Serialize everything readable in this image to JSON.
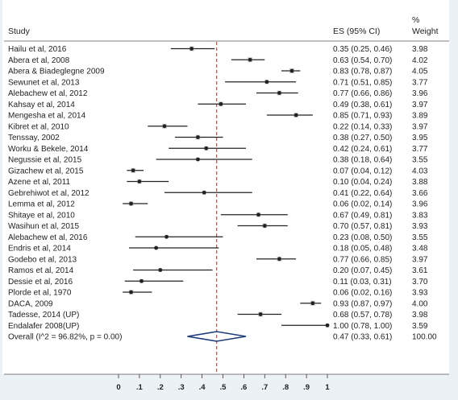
{
  "chart_data": {
    "type": "forest",
    "headers": {
      "study": "Study",
      "es": "ES (95% CI)",
      "weight_line1": "%",
      "weight_line2": "Weight"
    },
    "xticks": [
      "0",
      ".1",
      ".2",
      ".3",
      ".4",
      ".5",
      ".6",
      ".7",
      ".8",
      ".9",
      "1"
    ],
    "xlim": [
      0,
      1
    ],
    "reference_line": 0.47,
    "studies": [
      {
        "name": "Hailu et al, 2016",
        "es": 0.35,
        "lo": 0.25,
        "hi": 0.46,
        "ci_text": "0.35 (0.25, 0.46)",
        "weight": "3.98"
      },
      {
        "name": "Abera et al, 2008",
        "es": 0.63,
        "lo": 0.54,
        "hi": 0.7,
        "ci_text": "0.63 (0.54, 0.70)",
        "weight": "4.02"
      },
      {
        "name": "Abera & Biadeglegne 2009",
        "es": 0.83,
        "lo": 0.78,
        "hi": 0.87,
        "ci_text": "0.83 (0.78, 0.87)",
        "weight": "4.05"
      },
      {
        "name": "Sewunet et al, 2013",
        "es": 0.71,
        "lo": 0.51,
        "hi": 0.85,
        "ci_text": "0.71 (0.51, 0.85)",
        "weight": "3.77"
      },
      {
        "name": "Alebachew et al, 2012",
        "es": 0.77,
        "lo": 0.66,
        "hi": 0.86,
        "ci_text": "0.77 (0.66, 0.86)",
        "weight": "3.96"
      },
      {
        "name": "Kahsay et al, 2014",
        "es": 0.49,
        "lo": 0.38,
        "hi": 0.61,
        "ci_text": "0.49 (0.38, 0.61)",
        "weight": "3.97"
      },
      {
        "name": "Mengesha et al, 2014",
        "es": 0.85,
        "lo": 0.71,
        "hi": 0.93,
        "ci_text": "0.85 (0.71, 0.93)",
        "weight": "3.89"
      },
      {
        "name": "Kibret et al, 2010",
        "es": 0.22,
        "lo": 0.14,
        "hi": 0.33,
        "ci_text": "0.22 (0.14, 0.33)",
        "weight": "3.97"
      },
      {
        "name": "Tenssay, 2002",
        "es": 0.38,
        "lo": 0.27,
        "hi": 0.5,
        "ci_text": "0.38 (0.27, 0.50)",
        "weight": "3.95"
      },
      {
        "name": "Worku & Bekele, 2014",
        "es": 0.42,
        "lo": 0.24,
        "hi": 0.61,
        "ci_text": "0.42 (0.24, 0.61)",
        "weight": "3.77"
      },
      {
        "name": "Negussie et al, 2015",
        "es": 0.38,
        "lo": 0.18,
        "hi": 0.64,
        "ci_text": "0.38 (0.18, 0.64)",
        "weight": "3.55"
      },
      {
        "name": "Gizachew et al, 2015",
        "es": 0.07,
        "lo": 0.04,
        "hi": 0.12,
        "ci_text": "0.07 (0.04, 0.12)",
        "weight": "4.03"
      },
      {
        "name": "Azene et al, 2011",
        "es": 0.1,
        "lo": 0.04,
        "hi": 0.24,
        "ci_text": "0.10 (0.04, 0.24)",
        "weight": "3.88"
      },
      {
        "name": "Gebrehiwot et al, 2012",
        "es": 0.41,
        "lo": 0.22,
        "hi": 0.64,
        "ci_text": "0.41 (0.22, 0.64)",
        "weight": "3.66"
      },
      {
        "name": "Lemma et al, 2012",
        "es": 0.06,
        "lo": 0.02,
        "hi": 0.14,
        "ci_text": "0.06 (0.02, 0.14)",
        "weight": "3.96"
      },
      {
        "name": "Shitaye et al, 2010",
        "es": 0.67,
        "lo": 0.49,
        "hi": 0.81,
        "ci_text": "0.67 (0.49, 0.81)",
        "weight": "3.83"
      },
      {
        "name": "Wasihun et al, 2015",
        "es": 0.7,
        "lo": 0.57,
        "hi": 0.81,
        "ci_text": "0.70 (0.57, 0.81)",
        "weight": "3.93"
      },
      {
        "name": "Alebachew et al, 2016",
        "es": 0.23,
        "lo": 0.08,
        "hi": 0.5,
        "ci_text": "0.23 (0.08, 0.50)",
        "weight": "3.55"
      },
      {
        "name": "Endris et al, 2014",
        "es": 0.18,
        "lo": 0.05,
        "hi": 0.48,
        "ci_text": "0.18 (0.05, 0.48)",
        "weight": "3.48"
      },
      {
        "name": "Godebo et al, 2013",
        "es": 0.77,
        "lo": 0.66,
        "hi": 0.85,
        "ci_text": "0.77 (0.66, 0.85)",
        "weight": "3.97"
      },
      {
        "name": "Ramos et al, 2014",
        "es": 0.2,
        "lo": 0.07,
        "hi": 0.45,
        "ci_text": "0.20 (0.07, 0.45)",
        "weight": "3.61"
      },
      {
        "name": "Dessie et al, 2016",
        "es": 0.11,
        "lo": 0.03,
        "hi": 0.31,
        "ci_text": "0.11 (0.03, 0.31)",
        "weight": "3.70"
      },
      {
        "name": "Plorde et al, 1970",
        "es": 0.06,
        "lo": 0.02,
        "hi": 0.16,
        "ci_text": "0.06 (0.02, 0.16)",
        "weight": "3.93"
      },
      {
        "name": "DACA, 2009",
        "es": 0.93,
        "lo": 0.87,
        "hi": 0.97,
        "ci_text": "0.93 (0.87, 0.97)",
        "weight": "4.00"
      },
      {
        "name": "Tadesse, 2014 (UP)",
        "es": 0.68,
        "lo": 0.57,
        "hi": 0.78,
        "ci_text": "0.68 (0.57, 0.78)",
        "weight": "3.98"
      },
      {
        "name": "Endalafer 2008(UP)",
        "es": 1.0,
        "lo": 0.78,
        "hi": 1.0,
        "ci_text": "1.00 (0.78, 1.00)",
        "weight": "3.59"
      }
    ],
    "overall": {
      "name": "Overall  (I^2 = 96.82%, p = 0.00)",
      "es": 0.47,
      "lo": 0.33,
      "hi": 0.61,
      "ci_text": "0.47 (0.33, 0.61)",
      "weight": "100.00"
    },
    "colors": {
      "diamond": "#1f3c7a",
      "reference": "#8b3a3a",
      "point": "#222222",
      "background": "#ecf1f6"
    }
  }
}
